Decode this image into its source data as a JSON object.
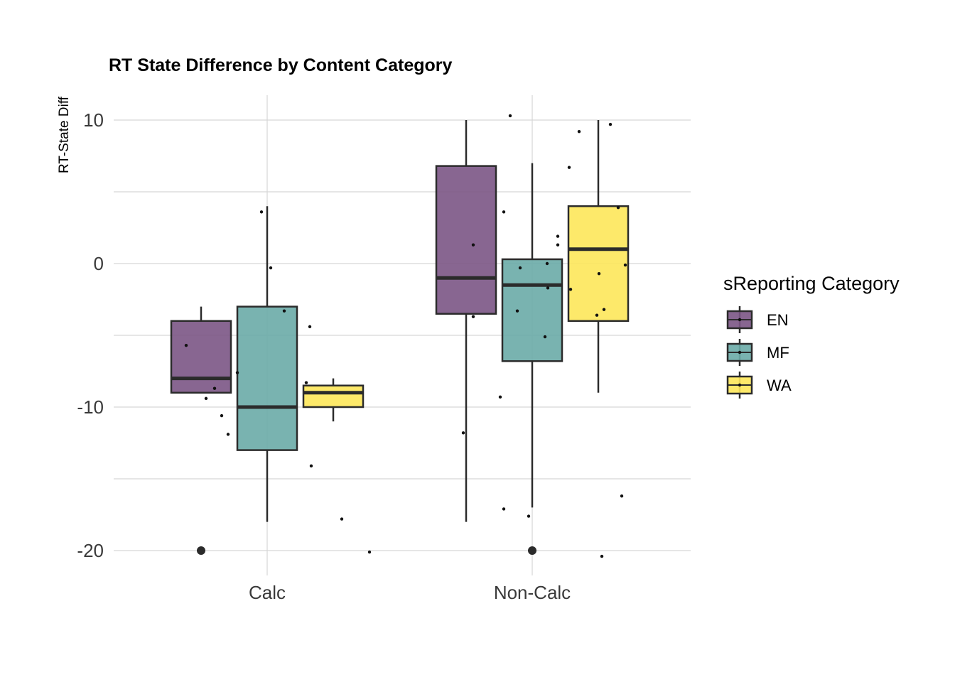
{
  "chart_data": {
    "type": "box",
    "title": "RT State Difference by Content Category",
    "xlabel": "",
    "ylabel": "RT-State Diff",
    "categories": [
      "Calc",
      "Non-Calc"
    ],
    "y_ticks": [
      "10",
      "0",
      "-10",
      "-20"
    ],
    "y_tick_values": [
      10,
      0,
      -10,
      -20
    ],
    "ylim": [
      -22,
      12
    ],
    "grid": true,
    "legend": {
      "title": "sReporting Category",
      "placement": "right",
      "entries": [
        "EN",
        "MF",
        "WA"
      ]
    },
    "series": [
      {
        "name": "EN",
        "color": "#7b5585",
        "boxes": [
          {
            "category": "Calc",
            "whisker_low": -9,
            "q1": -9,
            "median": -8,
            "q3": -4,
            "whisker_high": -3,
            "outliers": [
              -20
            ]
          },
          {
            "category": "Non-Calc",
            "whisker_low": -18,
            "q1": -3.5,
            "median": -1,
            "q3": 6.8,
            "whisker_high": 10,
            "outliers": []
          }
        ],
        "points": [
          {
            "category": "Calc",
            "y": -5.7
          },
          {
            "category": "Calc",
            "y": -9.4
          },
          {
            "category": "Calc",
            "y": -8.7
          },
          {
            "category": "Calc",
            "y": -10.6
          },
          {
            "category": "Calc",
            "y": -11.9
          },
          {
            "category": "Non-Calc",
            "y": 1.3
          },
          {
            "category": "Non-Calc",
            "y": -3.7
          },
          {
            "category": "Non-Calc",
            "y": -11.8
          }
        ]
      },
      {
        "name": "MF",
        "color": "#6aaba7",
        "boxes": [
          {
            "category": "Calc",
            "whisker_low": -18,
            "q1": -13,
            "median": -10,
            "q3": -3,
            "whisker_high": 4,
            "outliers": []
          },
          {
            "category": "Non-Calc",
            "whisker_low": -17,
            "q1": -6.8,
            "median": -1.5,
            "q3": 0.3,
            "whisker_high": 7,
            "outliers": [
              -20
            ]
          }
        ],
        "points": [
          {
            "category": "Calc",
            "y": 3.6
          },
          {
            "category": "Calc",
            "y": -0.3
          },
          {
            "category": "Calc",
            "y": -3.3
          },
          {
            "category": "Calc",
            "y": -7.6
          },
          {
            "category": "Non-Calc",
            "y": 10.3
          },
          {
            "category": "Non-Calc",
            "y": 3.6
          },
          {
            "category": "Non-Calc",
            "y": -0.3
          },
          {
            "category": "Non-Calc",
            "y": 0
          },
          {
            "category": "Non-Calc",
            "y": -1.7
          },
          {
            "category": "Non-Calc",
            "y": -3.3
          },
          {
            "category": "Non-Calc",
            "y": -5.1
          },
          {
            "category": "Non-Calc",
            "y": -9.3
          },
          {
            "category": "Non-Calc",
            "y": -17.1
          },
          {
            "category": "Non-Calc",
            "y": -17.6
          }
        ]
      },
      {
        "name": "WA",
        "color": "#fde75a",
        "boxes": [
          {
            "category": "Calc",
            "whisker_low": -11,
            "q1": -10,
            "median": -9,
            "q3": -8.5,
            "whisker_high": -8,
            "outliers": []
          },
          {
            "category": "Non-Calc",
            "whisker_low": -9,
            "q1": -4,
            "median": 1,
            "q3": 4,
            "whisker_high": 10,
            "outliers": []
          }
        ],
        "points": [
          {
            "category": "Calc",
            "y": -4.4
          },
          {
            "category": "Calc",
            "y": -8.3
          },
          {
            "category": "Calc",
            "y": -14.1
          },
          {
            "category": "Calc",
            "y": -17.8
          },
          {
            "category": "Calc",
            "y": -20.1
          },
          {
            "category": "Non-Calc",
            "y": 9.2
          },
          {
            "category": "Non-Calc",
            "y": 6.7
          },
          {
            "category": "Non-Calc",
            "y": 9.7
          },
          {
            "category": "Non-Calc",
            "y": 3.9
          },
          {
            "category": "Non-Calc",
            "y": 1.9
          },
          {
            "category": "Non-Calc",
            "y": 1.3
          },
          {
            "category": "Non-Calc",
            "y": -0.7
          },
          {
            "category": "Non-Calc",
            "y": -0.1
          },
          {
            "category": "Non-Calc",
            "y": -1.8
          },
          {
            "category": "Non-Calc",
            "y": -3.2
          },
          {
            "category": "Non-Calc",
            "y": -3.6
          },
          {
            "category": "Non-Calc",
            "y": -16.2
          },
          {
            "category": "Non-Calc",
            "y": -20.4
          }
        ]
      }
    ]
  }
}
